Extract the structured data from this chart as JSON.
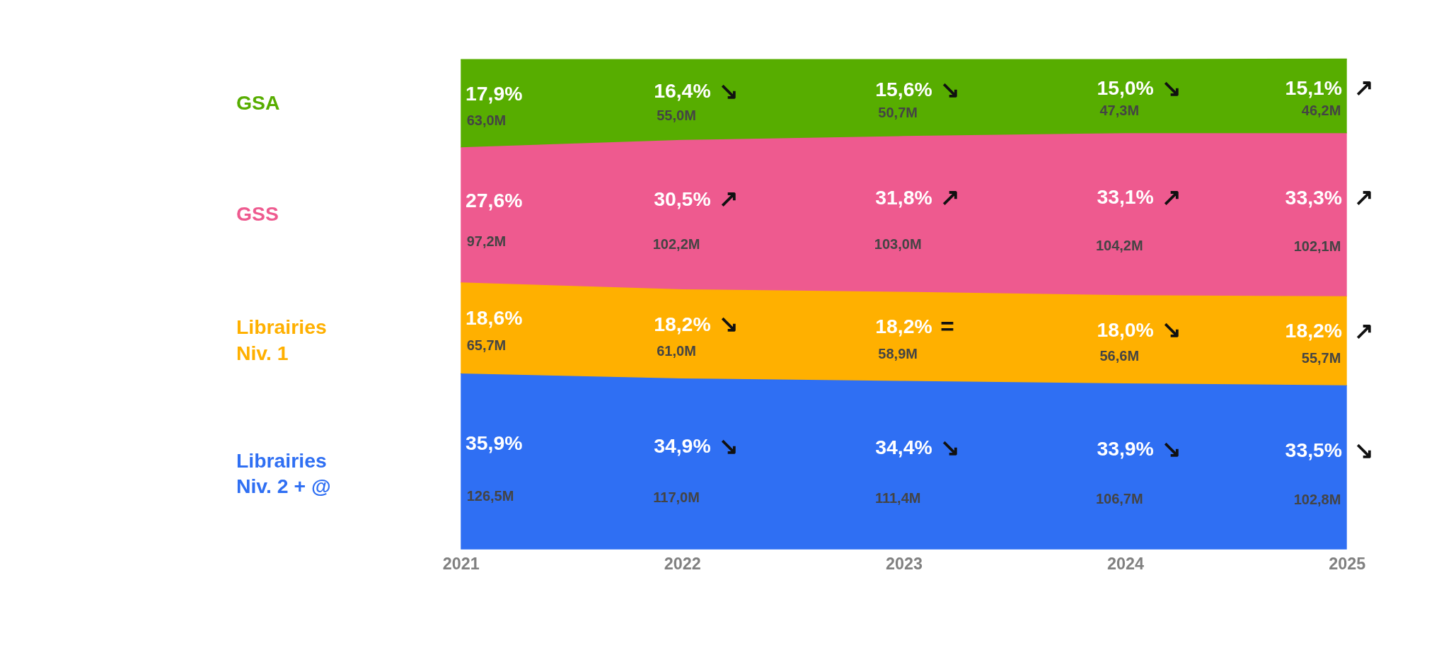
{
  "chart_data": {
    "type": "area",
    "stacked": true,
    "grid": false,
    "tick_labels": "x",
    "categories": [
      "2021",
      "2022",
      "2023",
      "2024",
      "2025"
    ],
    "series": [
      {
        "name": "Librairies Niv. 2 + @",
        "color": "#2f6ff3",
        "values": [
          35.9,
          34.9,
          34.4,
          33.9,
          33.5
        ],
        "value_labels": [
          "35,9%",
          "34,9%",
          "34,4%",
          "33,9%",
          "33,5%"
        ]
      },
      {
        "name": "Librairies Niv. 1",
        "color": "#ffb000",
        "values": [
          18.6,
          18.2,
          18.2,
          18.0,
          18.2
        ],
        "value_labels": [
          "18,6%",
          "18,2%",
          "18,2%",
          "18,0%",
          "18,2%"
        ]
      },
      {
        "name": "GSS",
        "color": "#ee5a8f",
        "values": [
          27.6,
          30.5,
          31.8,
          33.1,
          33.3
        ],
        "value_labels": [
          "27,6%",
          "30,5%",
          "31,8%",
          "33,1%",
          "33,3%"
        ]
      },
      {
        "name": "GSA",
        "color": "#57ad00",
        "values": [
          17.9,
          16.4,
          15.6,
          15.0,
          15.1
        ],
        "value_labels": [
          "17,9%",
          "16,4%",
          "15,6%",
          "15,0%",
          "15,1%"
        ]
      }
    ],
    "annotations": [
      "126,5M",
      "117,0M",
      "↘",
      "111,4M",
      "↘",
      "106,7M",
      "↘",
      "102,8M",
      "↘",
      "65,7M",
      "61,0M",
      "↘",
      "58,9M",
      "=",
      "56,6M",
      "↘",
      "55,7M",
      "↗",
      "97,2M",
      "102,2M",
      "↗",
      "103,0M",
      "↗",
      "104,2M",
      "↗",
      "102,1M",
      "↗",
      "63,0M",
      "55,0M",
      "↘",
      "50,7M",
      "↘",
      "47,3M",
      "↘",
      "46,2M",
      "↗"
    ]
  }
}
